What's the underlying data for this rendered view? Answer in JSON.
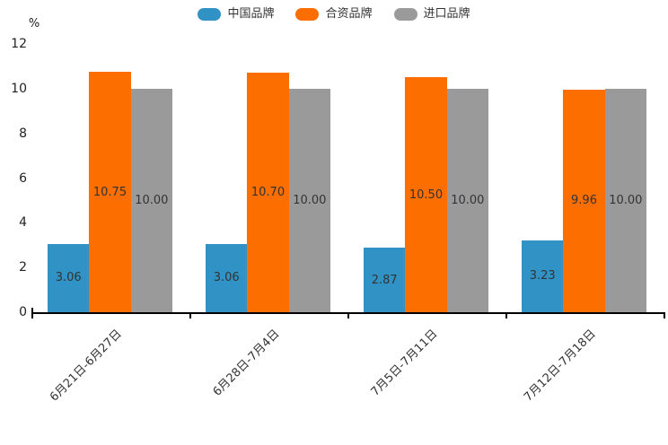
{
  "chart_data": {
    "type": "bar",
    "title": "",
    "categories": [
      "6月21日-6月27日",
      "6月28日-7月4日",
      "7月5日-7月11日",
      "7月12日-7月18日"
    ],
    "series": [
      {
        "name": "中国品牌",
        "color": "#3193C5",
        "values": [
          3.06,
          3.06,
          2.87,
          3.23
        ],
        "value_labels": [
          "3.06",
          "3.06",
          "2.87",
          "3.23"
        ]
      },
      {
        "name": "合资品牌",
        "color": "#FC6E00",
        "values": [
          10.75,
          10.7,
          10.5,
          9.96
        ],
        "value_labels": [
          "10.75",
          "10.70",
          "10.50",
          "9.96"
        ]
      },
      {
        "name": "进口品牌",
        "color": "#9A9A9A",
        "values": [
          10.0,
          10.0,
          10.0,
          10.0
        ],
        "value_labels": [
          "10.00",
          "10.00",
          "10.00",
          "10.00"
        ]
      }
    ],
    "xlabel": "",
    "ylabel": "%",
    "ylim": [
      0,
      12
    ],
    "yticks": [
      0,
      2,
      4,
      6,
      8,
      10,
      12
    ],
    "grid": false,
    "legend_position": "top-center",
    "bar_label_position": "inside-center",
    "x_label_rotation": -45,
    "text_color": "#333333",
    "axis_color": "#000000",
    "background_color": "#FFFFFF"
  }
}
